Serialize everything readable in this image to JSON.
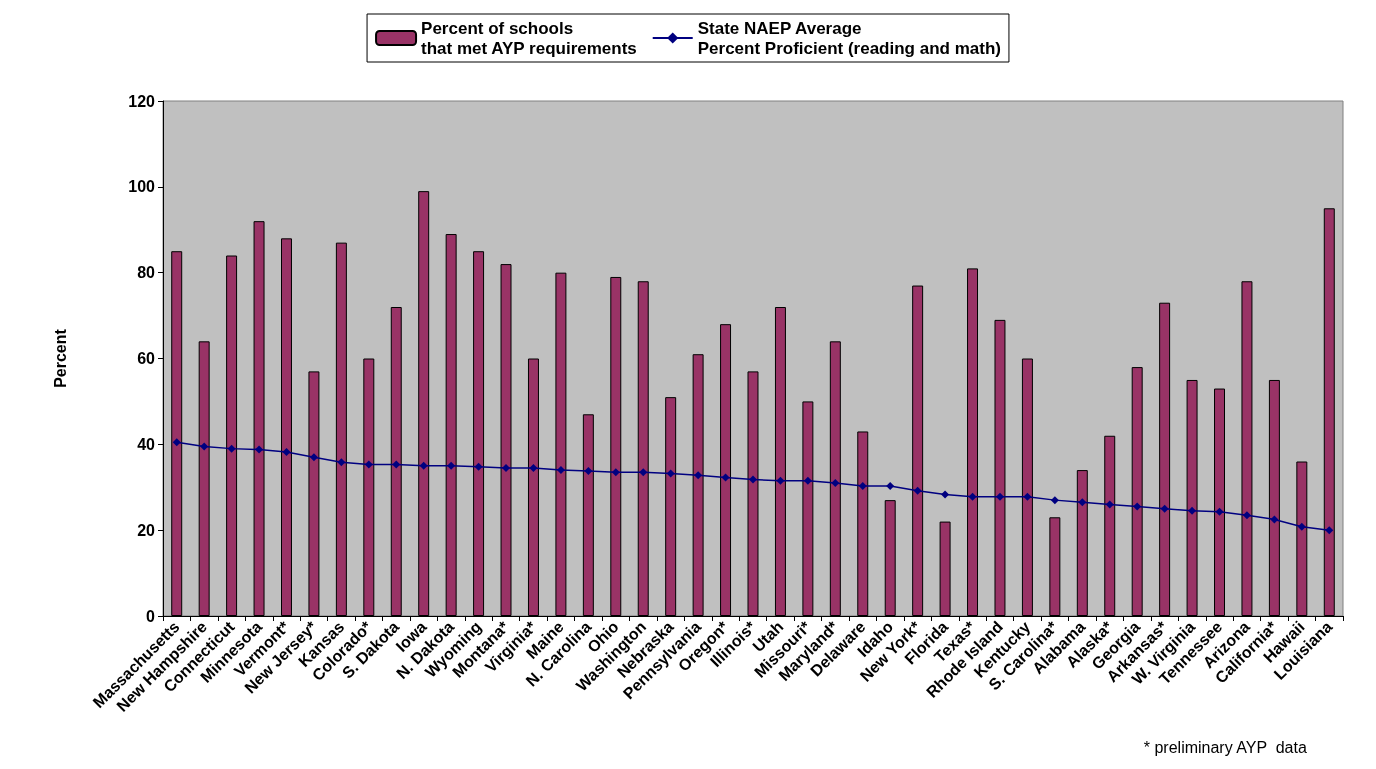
{
  "chart_data": {
    "type": "bar",
    "ylabel": "Percent",
    "categories": [
      "Massachusetts",
      "New Hampshire",
      "Connecticut",
      "Minnesota",
      "Vermont*",
      "New Jersey*",
      "Kansas",
      "Colorado*",
      "S. Dakota",
      "Iowa",
      "N. Dakota",
      "Wyoming",
      "Montana*",
      "Virginia*",
      "Maine",
      "N. Carolina",
      "Ohio",
      "Washington",
      "Nebraska",
      "Pennsylvania",
      "Oregon*",
      "Illinois*",
      "Utah",
      "Missouri*",
      "Maryland*",
      "Delaware",
      "Idaho",
      "New York*",
      "Florida",
      "Texas*",
      "Rhode Island",
      "Kentucky",
      "S. Carolina*",
      "Alabama",
      "Alaska*",
      "Georgia",
      "Arkansas*",
      "W. Virginia",
      "Tennessee",
      "Arizona",
      "California*",
      "Hawaii",
      "Louisiana"
    ],
    "series": [
      {
        "name": "Percent of schools\nthat met AYP requirements",
        "color": "#993366",
        "values": [
          85,
          64,
          84,
          92,
          88,
          57,
          87,
          60,
          72,
          99,
          89,
          85,
          82,
          60,
          80,
          47,
          79,
          78,
          51,
          61,
          68,
          57,
          72,
          50,
          64,
          43,
          27,
          77,
          22,
          81,
          69,
          60,
          23,
          34,
          42,
          58,
          73,
          55,
          53,
          78,
          55,
          36,
          95
        ]
      },
      {
        "name": "State NAEP Average\nPercent Proficient (reading and math)",
        "type": "line",
        "color": "#000080",
        "marker": "diamond",
        "values": [
          40.5,
          39.5,
          39,
          38.8,
          38.2,
          37,
          35.8,
          35.3,
          35.3,
          35,
          35,
          34.8,
          34.5,
          34.5,
          34,
          33.8,
          33.5,
          33.5,
          33.2,
          32.8,
          32.3,
          31.8,
          31.5,
          31.5,
          31,
          30.3,
          30.3,
          29.2,
          28.3,
          27.8,
          27.8,
          27.8,
          27,
          26.5,
          26,
          25.5,
          25,
          24.5,
          24.3,
          23.5,
          22.5,
          20.8,
          20
        ]
      }
    ],
    "ylim": [
      0,
      120
    ],
    "yticks": [
      0,
      20,
      40,
      60,
      80,
      100,
      120
    ],
    "grid": false,
    "legend": "top",
    "annotations": [
      "* preliminary AYP  data"
    ]
  }
}
